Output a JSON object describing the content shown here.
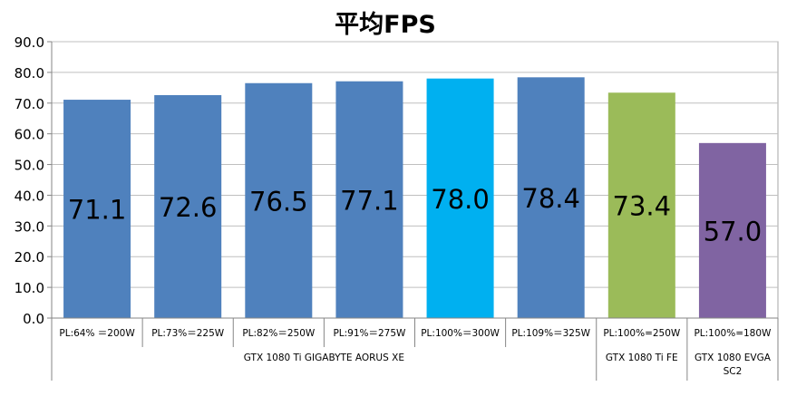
{
  "chart_data": {
    "type": "bar",
    "title": "平均FPS",
    "xlabel": "",
    "ylabel": "",
    "ylim": [
      0,
      90
    ],
    "yticks": [
      0,
      10,
      20,
      30,
      40,
      50,
      60,
      70,
      80,
      90
    ],
    "ytick_format": "fixed1",
    "grid": true,
    "legend": "none",
    "categories": [
      "PL:64% ＝200W",
      "PL:73%＝225W",
      "PL:82%＝250W",
      "PL:91%＝275W",
      "PL:100%＝300W",
      "PL:109%＝325W",
      "PL:100%=250W",
      "PL:100%=180W"
    ],
    "values": [
      71.1,
      72.6,
      76.5,
      77.1,
      78.0,
      78.4,
      73.4,
      57.0
    ],
    "data_labels": [
      "71.1",
      "72.6",
      "76.5",
      "77.1",
      "78.0",
      "78.4",
      "73.4",
      "57.0"
    ],
    "bar_colors": [
      "#4f81bd",
      "#4f81bd",
      "#4f81bd",
      "#4f81bd",
      "#00b0f0",
      "#4f81bd",
      "#9bbb59",
      "#8064a2"
    ],
    "groups": [
      {
        "label_lines": [
          "GTX 1080 Ti GIGABYTE AORUS XE"
        ],
        "start": 0,
        "end": 5
      },
      {
        "label_lines": [
          "GTX 1080 Ti FE"
        ],
        "start": 6,
        "end": 6
      },
      {
        "label_lines": [
          "GTX 1080 EVGA",
          "SC2"
        ],
        "start": 7,
        "end": 7
      }
    ]
  }
}
